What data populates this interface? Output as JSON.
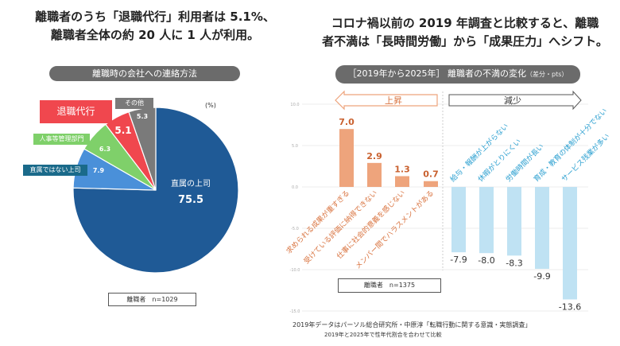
{
  "left": {
    "headline": [
      "離職者のうち「退職代行」利用者は 5.1%、",
      "離職者全体の約 20 人に 1 人が利用。"
    ],
    "pill_title": "離職時の会社への連絡方法",
    "unit": "(%)",
    "sample": "離職者　n=1029"
  },
  "right": {
    "headline": [
      "コロナ禍以前の 2019 年調査と比較すると、離職",
      "者不満は「長時間労働」から「成果圧力」へシフト。"
    ],
    "pill_title": "［2019年から2025年］ 離職者の不満の変化",
    "pill_unit": "（差分・pts）",
    "arrow_up": "上昇",
    "arrow_down": "減少",
    "sample": "離職者　n=1375",
    "footnotes": [
      "2019年データはパーソル総合研究所・中原淳「転職行動に関する意識・実態調査」",
      "2019年と2025年で性年代割合を合わせて比較"
    ]
  },
  "chart_data": [
    {
      "type": "pie",
      "title": "離職時の会社への連絡方法",
      "unit": "%",
      "slices": [
        {
          "label": "直属の上司",
          "value": 75.5,
          "color": "#1f5a96"
        },
        {
          "label": "直属ではない上司",
          "value": 7.9,
          "color": "#4a90d9"
        },
        {
          "label": "人事等管理部門",
          "value": 6.3,
          "color": "#7fd06a"
        },
        {
          "label": "退職代行",
          "value": 5.1,
          "color": "#f0474e"
        },
        {
          "label": "その他",
          "value": 5.3,
          "color": "#7a7a7a"
        }
      ]
    },
    {
      "type": "bar",
      "title": "［2019年から2025年］ 離職者の不満の変化（差分・pts）",
      "ylim": [
        -15,
        10
      ],
      "yticks": [
        "10.0",
        "5.0",
        "0.0",
        "-5.0",
        "-10.0",
        "-15.0"
      ],
      "grid": true,
      "categories": [
        "求められる成果が重すぎる",
        "受けている評価に納得できない",
        "仕事に社会的意義を感じない",
        "メンバー間でハラスメントがある",
        "給与・報酬が上がらない",
        "休暇がとりにくい",
        "労働時間が長い",
        "育成・教育の体制が十分でない",
        "サービス残業が多い"
      ],
      "values": [
        7.0,
        2.9,
        1.3,
        0.7,
        -7.9,
        -8.0,
        -8.3,
        -9.9,
        -13.6
      ],
      "colors": {
        "positive": "#eea47c",
        "negative": "#bfe2f3",
        "positive_text": "#d9733f",
        "negative_text": "#2a9fd0"
      }
    }
  ]
}
